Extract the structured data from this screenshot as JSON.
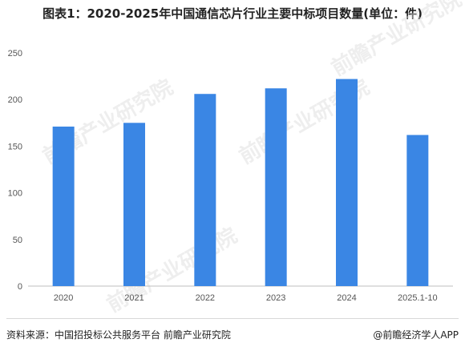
{
  "chart_data": {
    "type": "bar",
    "title": "图表1：2020-2025年中国通信芯片行业主要中标项目数量(单位：件)",
    "categories": [
      "2020",
      "2021",
      "2022",
      "2023",
      "2024",
      "2025.1-10"
    ],
    "values": [
      171,
      175,
      206,
      212,
      222,
      162
    ],
    "ylim": [
      0,
      250
    ],
    "yticks": [
      0,
      50,
      100,
      150,
      200,
      250
    ],
    "xlabel": "",
    "ylabel": "",
    "grid": false,
    "bar_color": "#3a86e4"
  },
  "footer": {
    "source": "资料来源：中国招投标公共服务平台 前瞻产业研究院",
    "brand": "@前瞻经济学人APP"
  },
  "watermark": "前瞻产业研究院"
}
